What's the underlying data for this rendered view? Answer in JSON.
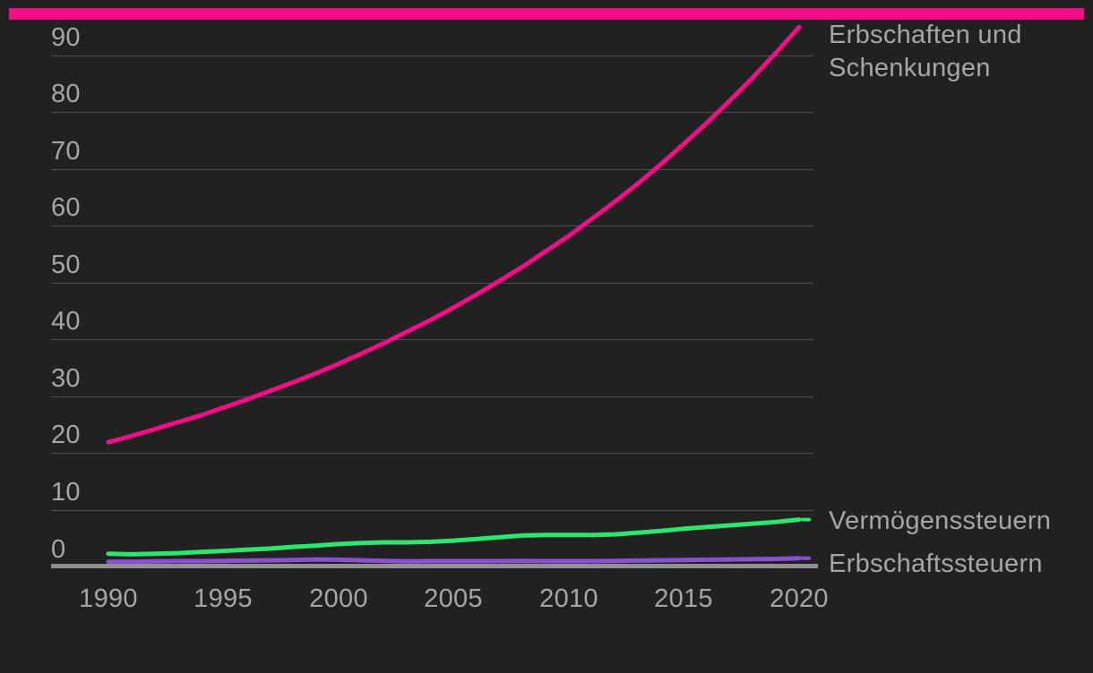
{
  "chart": {
    "legend": {
      "erbschaften_line1": "Erbschaften und",
      "erbschaften_line2": "Schenkungen",
      "vermoegenssteuern": "Vermögenssteuern",
      "erbschaftssteuern": "Erbschaftssteuern"
    }
  },
  "colors": {
    "background": "#212121",
    "accent_bar": "#f30e87",
    "series_pink": "#f30e87",
    "series_green": "#2ee56d",
    "series_purple": "#8b50d2",
    "gridline": "#4e4e4e",
    "axis": "#909090",
    "text": "#a6a6a6"
  },
  "chart_data": {
    "type": "line",
    "x": [
      1990,
      1991,
      1992,
      1993,
      1994,
      1995,
      1996,
      1997,
      1998,
      1999,
      2000,
      2001,
      2002,
      2003,
      2004,
      2005,
      2006,
      2007,
      2008,
      2009,
      2010,
      2011,
      2012,
      2013,
      2014,
      2015,
      2016,
      2017,
      2018,
      2019,
      2020
    ],
    "series": [
      {
        "name": "Erbschaften und Schenkungen",
        "color": "#f30e87",
        "values": [
          22.0,
          23.1,
          24.3,
          25.5,
          26.7,
          28.1,
          29.5,
          31.0,
          32.5,
          34.1,
          35.8,
          37.6,
          39.5,
          41.5,
          43.5,
          45.7,
          48.0,
          50.4,
          52.9,
          55.6,
          58.3,
          61.3,
          64.3,
          67.5,
          70.9,
          74.5,
          78.2,
          82.1,
          86.2,
          90.5,
          95.0
        ],
        "end_dash": false
      },
      {
        "name": "Vermögenssteuern",
        "color": "#2ee56d",
        "values": [
          2.4,
          2.3,
          2.4,
          2.5,
          2.7,
          2.9,
          3.1,
          3.3,
          3.6,
          3.8,
          4.1,
          4.3,
          4.4,
          4.4,
          4.5,
          4.7,
          5.0,
          5.3,
          5.6,
          5.7,
          5.7,
          5.7,
          5.8,
          6.1,
          6.4,
          6.8,
          7.1,
          7.4,
          7.7,
          8.0,
          8.4
        ],
        "end_dash": true
      },
      {
        "name": "Erbschaftssteuern",
        "color": "#8b50d2",
        "values": [
          1.0,
          1.0,
          1.05,
          1.1,
          1.1,
          1.15,
          1.2,
          1.25,
          1.3,
          1.4,
          1.35,
          1.25,
          1.15,
          1.05,
          1.1,
          1.1,
          1.1,
          1.1,
          1.15,
          1.1,
          1.1,
          1.1,
          1.15,
          1.2,
          1.25,
          1.3,
          1.35,
          1.4,
          1.45,
          1.5,
          1.6
        ],
        "end_dash": true
      }
    ],
    "xticks": [
      1990,
      1995,
      2000,
      2005,
      2010,
      2015,
      2020
    ],
    "yticks": [
      0,
      10,
      20,
      30,
      40,
      50,
      60,
      70,
      80,
      90
    ],
    "xlim": [
      1990,
      2020
    ],
    "ylim": [
      0,
      95
    ],
    "grid": true,
    "legend_position": "right-of-line-ends"
  }
}
